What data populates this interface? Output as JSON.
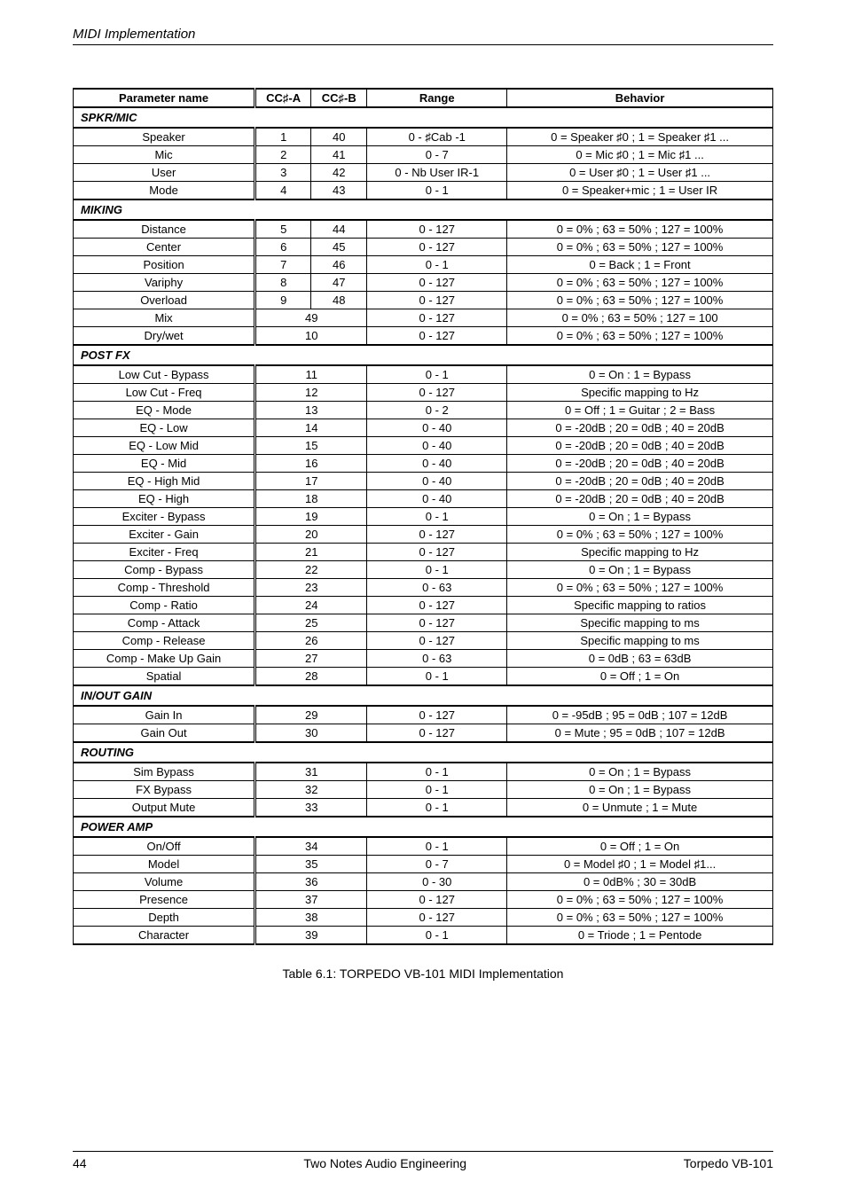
{
  "header": {
    "title": "MIDI Implementation"
  },
  "table": {
    "columns": {
      "name": "Parameter name",
      "cca": "CC♯-A",
      "ccb": "CC♯-B",
      "range": "Range",
      "behavior": "Behavior"
    },
    "sections": [
      {
        "title": "SPKR/MIC",
        "rows": [
          {
            "name": "Speaker",
            "cca": "1",
            "ccb": "40",
            "range": "0 - ♯Cab -1",
            "behavior": "0 = Speaker ♯0 ; 1 = Speaker ♯1 ..."
          },
          {
            "name": "Mic",
            "cca": "2",
            "ccb": "41",
            "range": "0 - 7",
            "behavior": "0 = Mic ♯0 ; 1 = Mic ♯1 ..."
          },
          {
            "name": "User",
            "cca": "3",
            "ccb": "42",
            "range": "0 - Nb User IR-1",
            "behavior": "0 = User ♯0 ; 1 = User ♯1 ..."
          },
          {
            "name": "Mode",
            "cca": "4",
            "ccb": "43",
            "range": "0 - 1",
            "behavior": "0 = Speaker+mic ; 1 = User IR"
          }
        ]
      },
      {
        "title": "MIKING",
        "rows": [
          {
            "name": "Distance",
            "cca": "5",
            "ccb": "44",
            "range": "0 - 127",
            "behavior": "0 = 0% ; 63 = 50% ; 127 = 100%"
          },
          {
            "name": "Center",
            "cca": "6",
            "ccb": "45",
            "range": "0 - 127",
            "behavior": "0 = 0% ; 63 = 50% ; 127 = 100%"
          },
          {
            "name": "Position",
            "cca": "7",
            "ccb": "46",
            "range": "0 - 1",
            "behavior": "0 = Back ; 1 = Front"
          },
          {
            "name": "Variphy",
            "cca": "8",
            "ccb": "47",
            "range": "0 - 127",
            "behavior": "0 = 0% ; 63 = 50% ; 127 = 100%"
          },
          {
            "name": "Overload",
            "cca": "9",
            "ccb": "48",
            "range": "0 - 127",
            "behavior": "0 = 0% ; 63 = 50% ; 127 = 100%"
          },
          {
            "name": "Mix",
            "cc": "49",
            "range": "0 - 127",
            "behavior": "0 = 0% ; 63 = 50% ; 127 = 100",
            "merged": true
          },
          {
            "name": "Dry/wet",
            "cc": "10",
            "range": "0 - 127",
            "behavior": "0 = 0% ; 63 = 50% ; 127 = 100%",
            "merged": true
          }
        ]
      },
      {
        "title": "POST FX",
        "rows": [
          {
            "name": "Low Cut - Bypass",
            "cc": "11",
            "range": "0 - 1",
            "behavior": "0 = On : 1 = Bypass",
            "merged": true
          },
          {
            "name": "Low Cut - Freq",
            "cc": "12",
            "range": "0 - 127",
            "behavior": "Specific mapping to Hz",
            "merged": true
          },
          {
            "name": "EQ - Mode",
            "cc": "13",
            "range": "0 - 2",
            "behavior": "0 = Off ; 1 = Guitar ; 2 = Bass",
            "merged": true
          },
          {
            "name": "EQ - Low",
            "cc": "14",
            "range": "0 - 40",
            "behavior": "0 = -20dB ; 20 = 0dB ; 40 = 20dB",
            "merged": true
          },
          {
            "name": "EQ - Low Mid",
            "cc": "15",
            "range": "0 - 40",
            "behavior": "0 = -20dB ; 20 = 0dB ; 40 = 20dB",
            "merged": true
          },
          {
            "name": "EQ - Mid",
            "cc": "16",
            "range": "0 - 40",
            "behavior": "0 = -20dB ; 20 = 0dB ; 40 = 20dB",
            "merged": true
          },
          {
            "name": "EQ - High Mid",
            "cc": "17",
            "range": "0 - 40",
            "behavior": "0 = -20dB ; 20 = 0dB ; 40 = 20dB",
            "merged": true
          },
          {
            "name": "EQ - High",
            "cc": "18",
            "range": "0 - 40",
            "behavior": "0 = -20dB ; 20 = 0dB ; 40 = 20dB",
            "merged": true
          },
          {
            "name": "Exciter - Bypass",
            "cc": "19",
            "range": "0 - 1",
            "behavior": "0 = On ; 1 = Bypass",
            "merged": true
          },
          {
            "name": "Exciter - Gain",
            "cc": "20",
            "range": "0 - 127",
            "behavior": "0 = 0% ; 63 = 50% ; 127 = 100%",
            "merged": true
          },
          {
            "name": "Exciter - Freq",
            "cc": "21",
            "range": "0 - 127",
            "behavior": "Specific mapping to Hz",
            "merged": true
          },
          {
            "name": "Comp - Bypass",
            "cc": "22",
            "range": "0 - 1",
            "behavior": "0 = On ; 1 = Bypass",
            "merged": true
          },
          {
            "name": "Comp - Threshold",
            "cc": "23",
            "range": "0 - 63",
            "behavior": "0 = 0% ; 63 = 50% ; 127 = 100%",
            "merged": true
          },
          {
            "name": "Comp - Ratio",
            "cc": "24",
            "range": "0 - 127",
            "behavior": "Specific mapping to ratios",
            "merged": true
          },
          {
            "name": "Comp - Attack",
            "cc": "25",
            "range": "0 - 127",
            "behavior": "Specific mapping to ms",
            "merged": true
          },
          {
            "name": "Comp - Release",
            "cc": "26",
            "range": "0 - 127",
            "behavior": "Specific mapping to ms",
            "merged": true
          },
          {
            "name": "Comp - Make Up Gain",
            "cc": "27",
            "range": "0 - 63",
            "behavior": "0 = 0dB ; 63 = 63dB",
            "merged": true
          },
          {
            "name": "Spatial",
            "cc": "28",
            "range": "0 - 1",
            "behavior": "0 = Off ; 1 = On",
            "merged": true
          }
        ]
      },
      {
        "title": "IN/OUT GAIN",
        "rows": [
          {
            "name": "Gain In",
            "cc": "29",
            "range": "0 - 127",
            "behavior": "0 = -95dB ; 95 = 0dB ; 107 = 12dB",
            "merged": true
          },
          {
            "name": "Gain Out",
            "cc": "30",
            "range": "0 - 127",
            "behavior": "0 = Mute ; 95 = 0dB ; 107 = 12dB",
            "merged": true
          }
        ]
      },
      {
        "title": "ROUTING",
        "rows": [
          {
            "name": "Sim Bypass",
            "cc": "31",
            "range": "0 - 1",
            "behavior": "0 = On ; 1 = Bypass",
            "merged": true
          },
          {
            "name": "FX Bypass",
            "cc": "32",
            "range": "0 - 1",
            "behavior": "0 = On ; 1 = Bypass",
            "merged": true
          },
          {
            "name": "Output Mute",
            "cc": "33",
            "range": "0 - 1",
            "behavior": "0 = Unmute ; 1 = Mute",
            "merged": true
          }
        ]
      },
      {
        "title": "POWER AMP",
        "rows": [
          {
            "name": "On/Off",
            "cc": "34",
            "range": "0 - 1",
            "behavior": "0 = Off ; 1 = On",
            "merged": true
          },
          {
            "name": "Model",
            "cc": "35",
            "range": "0 - 7",
            "behavior": "0 = Model ♯0 ; 1 = Model ♯1...",
            "merged": true
          },
          {
            "name": "Volume",
            "cc": "36",
            "range": "0 - 30",
            "behavior": "0 = 0dB% ; 30 = 30dB",
            "merged": true
          },
          {
            "name": "Presence",
            "cc": "37",
            "range": "0 - 127",
            "behavior": "0 = 0% ; 63 = 50% ; 127 = 100%",
            "merged": true
          },
          {
            "name": "Depth",
            "cc": "38",
            "range": "0 - 127",
            "behavior": "0 = 0% ; 63 = 50% ; 127 = 100%",
            "merged": true
          },
          {
            "name": "Character",
            "cc": "39",
            "range": "0 - 1",
            "behavior": "0 = Triode ; 1 = Pentode",
            "merged": true
          }
        ]
      }
    ]
  },
  "caption": "Table 6.1: TORPEDO VB-101 MIDI Implementation",
  "footer": {
    "page_number": "44",
    "center": "Two Notes Audio Engineering",
    "right": "Torpedo VB-101"
  }
}
